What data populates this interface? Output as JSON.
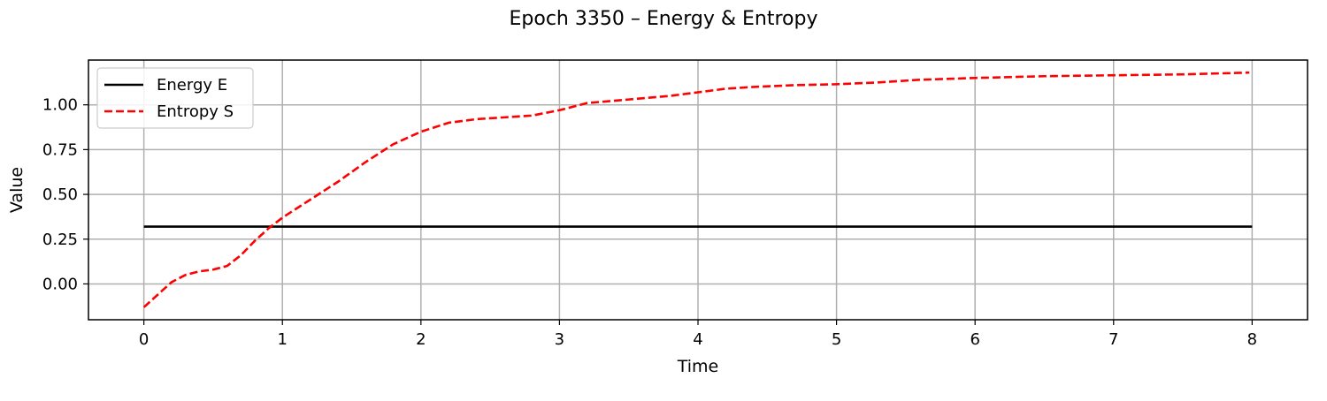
{
  "chart_data": {
    "type": "line",
    "title": "Epoch 3350 – Energy & Entropy",
    "xlabel": "Time",
    "ylabel": "Value",
    "xlim": [
      -0.4,
      8.4
    ],
    "ylim": [
      -0.2,
      1.25
    ],
    "xticks": [
      0,
      1,
      2,
      3,
      4,
      5,
      6,
      7,
      8
    ],
    "xtick_labels": [
      "0",
      "1",
      "2",
      "3",
      "4",
      "5",
      "6",
      "7",
      "8"
    ],
    "yticks": [
      0.0,
      0.25,
      0.5,
      0.75,
      1.0
    ],
    "ytick_labels": [
      "0.00",
      "0.25",
      "0.50",
      "0.75",
      "1.00"
    ],
    "grid": true,
    "legend_position": "top-left",
    "series": [
      {
        "name": "Energy E",
        "color": "#000000",
        "style": "solid",
        "x": [
          0,
          8
        ],
        "y": [
          0.32,
          0.32
        ]
      },
      {
        "name": "Entropy S",
        "color": "#ff0000",
        "style": "dashed",
        "x": [
          0,
          0.1,
          0.2,
          0.3,
          0.4,
          0.5,
          0.6,
          0.7,
          0.8,
          0.9,
          1.0,
          1.2,
          1.4,
          1.6,
          1.8,
          2.0,
          2.2,
          2.4,
          2.6,
          2.8,
          3.0,
          3.2,
          3.5,
          3.8,
          4.0,
          4.2,
          4.4,
          4.7,
          5.0,
          5.3,
          5.6,
          6.0,
          6.5,
          7.0,
          7.5,
          7.98
        ],
        "y": [
          -0.13,
          -0.06,
          0.01,
          0.05,
          0.07,
          0.08,
          0.1,
          0.16,
          0.24,
          0.31,
          0.37,
          0.47,
          0.57,
          0.68,
          0.78,
          0.85,
          0.9,
          0.92,
          0.93,
          0.94,
          0.97,
          1.01,
          1.03,
          1.05,
          1.07,
          1.09,
          1.1,
          1.11,
          1.115,
          1.125,
          1.14,
          1.15,
          1.16,
          1.165,
          1.17,
          1.18
        ]
      }
    ]
  }
}
